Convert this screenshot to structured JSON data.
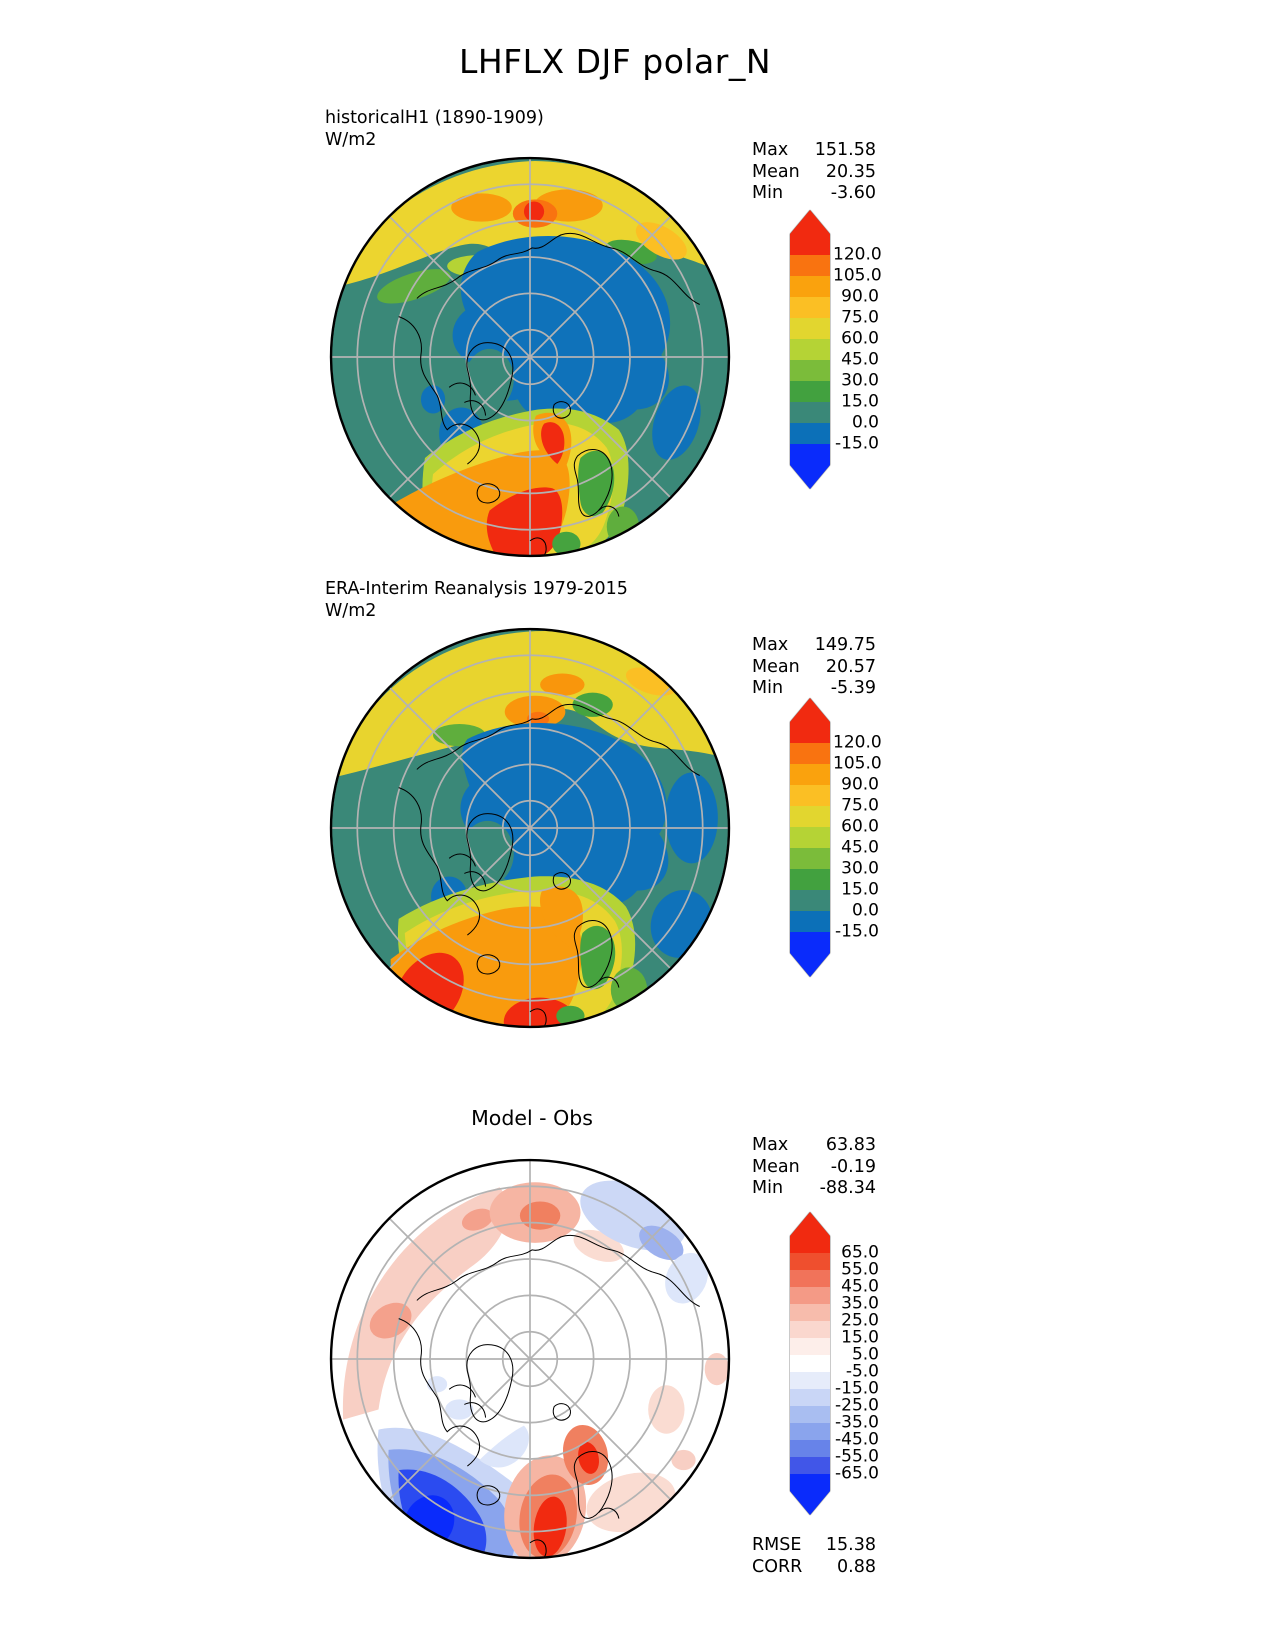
{
  "figure_title": "LHFLX DJF polar_N",
  "panels": [
    {
      "label_line1": "historicalH1 (1890-1909)",
      "label_line2": "W/m2",
      "stats": [
        {
          "label": "Max",
          "value": "151.58"
        },
        {
          "label": "Mean",
          "value": "20.35"
        },
        {
          "label": "Min",
          "value": "-3.60"
        }
      ],
      "colorbar": {
        "ticks": [
          "120.0",
          "105.0",
          "90.0",
          "75.0",
          "60.0",
          "45.0",
          "30.0",
          "15.0",
          "0.0",
          "-15.0"
        ],
        "colors": [
          "#f12a10",
          "#f97310",
          "#faa20d",
          "#fbbf24",
          "#e2d62f",
          "#b5d335",
          "#7bbc3a",
          "#42a13f",
          "#3a8878",
          "#0c70b8",
          "#0a2bfb"
        ]
      }
    },
    {
      "label_line1": "ERA-Interim Reanalysis 1979-2015",
      "label_line2": "W/m2",
      "stats": [
        {
          "label": "Max",
          "value": "149.75"
        },
        {
          "label": "Mean",
          "value": "20.57"
        },
        {
          "label": "Min",
          "value": "-5.39"
        }
      ],
      "colorbar": {
        "ticks": [
          "120.0",
          "105.0",
          "90.0",
          "75.0",
          "60.0",
          "45.0",
          "30.0",
          "15.0",
          "0.0",
          "-15.0"
        ],
        "colors": [
          "#f12a10",
          "#f97310",
          "#faa20d",
          "#fbbf24",
          "#e2d62f",
          "#b5d335",
          "#7bbc3a",
          "#42a13f",
          "#3a8878",
          "#0c70b8",
          "#0a2bfb"
        ]
      }
    },
    {
      "title": "Model - Obs",
      "stats": [
        {
          "label": "Max",
          "value": "63.83"
        },
        {
          "label": "Mean",
          "value": "-0.19"
        },
        {
          "label": "Min",
          "value": "-88.34"
        }
      ],
      "colorbar": {
        "ticks": [
          "65.0",
          "55.0",
          "45.0",
          "35.0",
          "25.0",
          "15.0",
          "5.0",
          "-5.0",
          "-15.0",
          "-25.0",
          "-35.0",
          "-45.0",
          "-55.0",
          "-65.0"
        ],
        "colors": [
          "#f12a10",
          "#ef4f2e",
          "#f1735a",
          "#f49a86",
          "#f7bcac",
          "#fad7ce",
          "#fdeeea",
          "#ffffff",
          "#e6ecfa",
          "#c9d6f6",
          "#a9bef1",
          "#8aa4ed",
          "#6783e9",
          "#4156e8",
          "#0a2bfb"
        ]
      },
      "extra_stats": [
        {
          "label": "RMSE",
          "value": "15.38"
        },
        {
          "label": "CORR",
          "value": "0.88"
        }
      ]
    }
  ],
  "chart_data": [
    {
      "type": "heatmap",
      "subtype": "filled-contour polar stereographic map (North Pole)",
      "variable": "LHFLX",
      "season": "DJF",
      "region": "polar_N",
      "title": "historicalH1 (1890-1909)",
      "units": "W/m2",
      "stats": {
        "max": 151.58,
        "mean": 20.35,
        "min": -3.6
      },
      "contour_levels": [
        -15.0,
        0.0,
        15.0,
        30.0,
        45.0,
        60.0,
        75.0,
        90.0,
        105.0,
        120.0
      ],
      "colorbar_orientation": "vertical, arrow ends, red (high) to blue (low)"
    },
    {
      "type": "heatmap",
      "subtype": "filled-contour polar stereographic map (North Pole)",
      "variable": "LHFLX",
      "season": "DJF",
      "region": "polar_N",
      "title": "ERA-Interim Reanalysis 1979-2015",
      "units": "W/m2",
      "stats": {
        "max": 149.75,
        "mean": 20.57,
        "min": -5.39
      },
      "contour_levels": [
        -15.0,
        0.0,
        15.0,
        30.0,
        45.0,
        60.0,
        75.0,
        90.0,
        105.0,
        120.0
      ],
      "colorbar_orientation": "vertical, arrow ends, red (high) to blue (low)"
    },
    {
      "type": "heatmap",
      "subtype": "filled-contour polar stereographic difference map (North Pole)",
      "variable": "LHFLX",
      "season": "DJF",
      "region": "polar_N",
      "title": "Model - Obs",
      "units": "W/m2",
      "stats": {
        "max": 63.83,
        "mean": -0.19,
        "min": -88.34,
        "rmse": 15.38,
        "corr": 0.88
      },
      "contour_levels": [
        -65.0,
        -55.0,
        -45.0,
        -35.0,
        -25.0,
        -15.0,
        -5.0,
        5.0,
        15.0,
        25.0,
        35.0,
        45.0,
        55.0,
        65.0
      ],
      "colorbar_orientation": "vertical, arrow ends, diverging red-white-blue"
    }
  ]
}
